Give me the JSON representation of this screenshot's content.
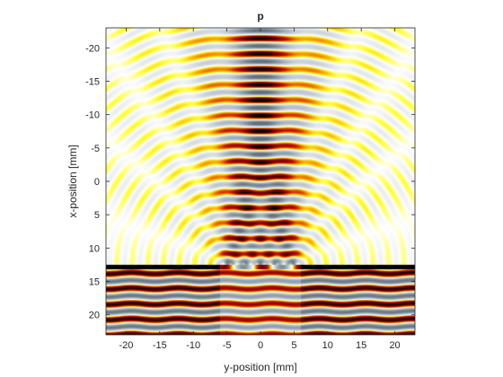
{
  "chart_data": {
    "type": "heatmap",
    "title": "p",
    "xlabel": "y-position [mm]",
    "ylabel": "x-position [mm]",
    "xlim": [
      -23,
      23
    ],
    "ylim": [
      -23,
      23
    ],
    "y_axis_reversed": true,
    "x_ticks": [
      -20,
      -15,
      -10,
      -5,
      0,
      5,
      10,
      15,
      20
    ],
    "y_ticks": [
      -20,
      -15,
      -10,
      -5,
      0,
      5,
      10,
      15,
      20
    ],
    "grid": false,
    "colormap": "diverging: black-red-yellow-white-grey-slate",
    "colors": {
      "wall": "#000000",
      "positive_peak": "#c81400",
      "positive_mid": "#ffff3c",
      "neutral": "#ffffff",
      "negative": "#a7b5be"
    },
    "source_model": {
      "description": "plane wave incident from positive x on a wall with a slit; diffracted field above the wall",
      "wall_x_range": [
        12.5,
        13.2
      ],
      "slit_y_range": [
        -6,
        6
      ],
      "wavelength_mm": 2.3
    }
  }
}
